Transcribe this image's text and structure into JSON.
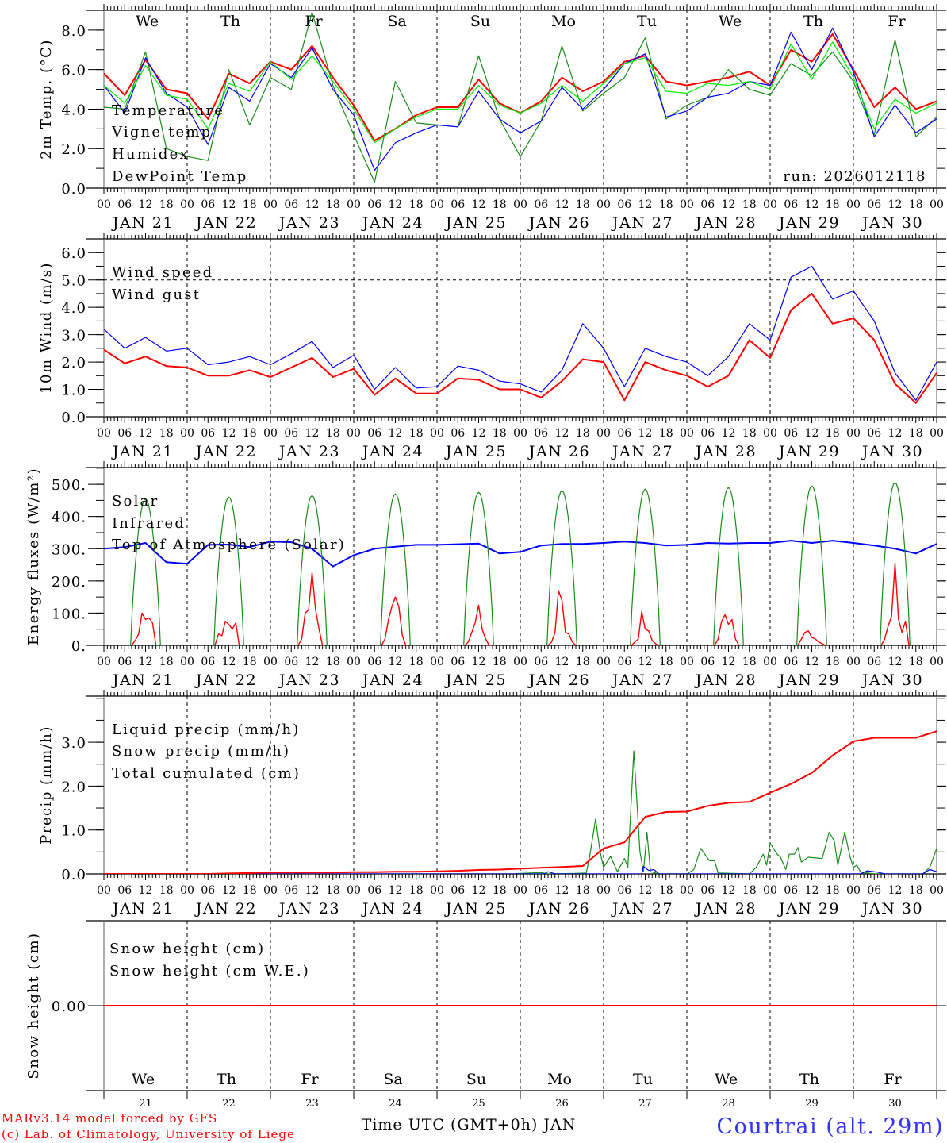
{
  "x_axis": {
    "hours_total": 240,
    "hour_labels": [
      "00",
      "06",
      "12",
      "18"
    ],
    "date_labels": [
      "JAN 21",
      "JAN 22",
      "JAN 23",
      "JAN 24",
      "JAN 25",
      "JAN 26",
      "JAN 27",
      "JAN 28",
      "JAN 29",
      "JAN 30"
    ],
    "day_names": [
      "We",
      "Th",
      "Fr",
      "Sa",
      "Su",
      "Mo",
      "Tu",
      "We",
      "Th",
      "Fr"
    ],
    "weekend_days": [
      3,
      4
    ],
    "weekend_color": "#ff0000",
    "day_numbers": [
      "21",
      "22",
      "23",
      "24",
      "25",
      "26",
      "27",
      "28",
      "29",
      "30"
    ],
    "title": "Time UTC (GMT+0h) JAN"
  },
  "footer": {
    "credit_1": "MARv3.14 model forced by GFS",
    "credit_2": "(c) Lab. of Climatology, University of Liege",
    "location": "Courtrai (alt. 29m)"
  },
  "chart_data": [
    {
      "type": "line",
      "ylabel": "2m Temp. (°C)",
      "ylim": [
        0,
        9
      ],
      "minor_step": 1,
      "yticks": [
        {
          "v": 0,
          "label": "0.0"
        },
        {
          "v": 2,
          "label": "2.0"
        },
        {
          "v": 4,
          "label": "4.0"
        },
        {
          "v": 6,
          "label": "6.0"
        },
        {
          "v": 8,
          "label": "8.0"
        }
      ],
      "run_label": "run: 2026012118",
      "step_hours": 6,
      "series": [
        {
          "name": "Temperature",
          "color": "#ff0000",
          "width": 2,
          "values": [
            5.8,
            4.7,
            6.5,
            5.0,
            4.8,
            3.5,
            5.8,
            5.3,
            6.4,
            6.0,
            7.2,
            5.6,
            4.2,
            2.4,
            3.0,
            3.7,
            4.1,
            4.1,
            5.5,
            4.3,
            3.8,
            4.4,
            5.6,
            4.9,
            5.4,
            6.4,
            6.7,
            5.4,
            5.2,
            5.4,
            5.6,
            5.9,
            5.2,
            7.0,
            6.4,
            7.8,
            6.0,
            4.1,
            5.1,
            4.0,
            4.4
          ]
        },
        {
          "name": "Vigne temp",
          "color": "#1a8c1a",
          "width": 1.2,
          "values": [
            4.1,
            4.0,
            6.9,
            2.0,
            1.6,
            1.4,
            6.0,
            3.2,
            5.6,
            5.0,
            8.9,
            5.2,
            2.7,
            0.3,
            5.4,
            3.3,
            3.2,
            3.1,
            6.7,
            3.5,
            1.6,
            3.4,
            7.2,
            3.9,
            4.8,
            5.6,
            7.6,
            3.5,
            4.2,
            4.6,
            6.0,
            5.0,
            4.7,
            6.3,
            5.7,
            6.9,
            5.4,
            2.7,
            7.5,
            2.6,
            3.6
          ]
        },
        {
          "name": "Humidex",
          "color": "#0000ff",
          "width": 1.2,
          "values": [
            5.2,
            3.8,
            6.6,
            4.8,
            4.1,
            2.2,
            5.1,
            4.4,
            6.3,
            5.6,
            7.1,
            5.0,
            3.7,
            0.9,
            2.3,
            2.8,
            3.2,
            3.1,
            4.9,
            3.5,
            2.8,
            3.4,
            5.1,
            4.0,
            5.0,
            6.3,
            6.8,
            3.6,
            3.9,
            4.6,
            4.8,
            5.4,
            5.2,
            7.9,
            6.0,
            8.1,
            5.9,
            2.6,
            4.2,
            2.8,
            3.5
          ]
        },
        {
          "name": "DewPoint Temp",
          "color": "#00ee00",
          "width": 1.2,
          "values": [
            5.2,
            4.3,
            6.2,
            4.7,
            4.5,
            3.0,
            5.3,
            4.9,
            6.4,
            5.5,
            6.7,
            5.4,
            4.0,
            2.3,
            3.0,
            3.6,
            4.0,
            4.0,
            5.2,
            4.2,
            3.8,
            4.3,
            5.2,
            4.4,
            5.3,
            6.3,
            6.6,
            4.9,
            4.8,
            5.3,
            5.2,
            5.4,
            5.0,
            7.3,
            5.5,
            7.4,
            5.6,
            3.0,
            4.5,
            3.8,
            4.3
          ]
        }
      ]
    },
    {
      "type": "line",
      "ylabel": "10m Wind (m/s)",
      "ylim": [
        0,
        6.5
      ],
      "minor_step": 0.5,
      "hline": 5.0,
      "yticks": [
        {
          "v": 0,
          "label": "0.0"
        },
        {
          "v": 1,
          "label": "1.0"
        },
        {
          "v": 2,
          "label": "2.0"
        },
        {
          "v": 3,
          "label": "3.0"
        },
        {
          "v": 4,
          "label": "4.0"
        },
        {
          "v": 5,
          "label": "5.0"
        },
        {
          "v": 6,
          "label": "6.0"
        }
      ],
      "step_hours": 6,
      "series": [
        {
          "name": "Wind speed",
          "color": "#ff0000",
          "width": 2,
          "values": [
            2.45,
            1.95,
            2.2,
            1.85,
            1.8,
            1.5,
            1.5,
            1.7,
            1.45,
            1.8,
            2.15,
            1.45,
            1.75,
            0.8,
            1.4,
            0.85,
            0.85,
            1.4,
            1.35,
            1.0,
            1.0,
            0.7,
            1.3,
            2.1,
            2.0,
            0.6,
            2.0,
            1.7,
            1.5,
            1.1,
            1.5,
            2.8,
            2.15,
            3.9,
            4.5,
            3.4,
            3.6,
            2.8,
            1.2,
            0.5,
            1.6
          ]
        },
        {
          "name": "Wind gust",
          "color": "#0000ff",
          "width": 1.2,
          "values": [
            3.2,
            2.5,
            2.9,
            2.4,
            2.5,
            1.9,
            2.0,
            2.2,
            1.9,
            2.3,
            2.75,
            1.8,
            2.25,
            1.0,
            1.8,
            1.05,
            1.1,
            1.85,
            1.7,
            1.3,
            1.2,
            0.9,
            1.7,
            3.4,
            2.5,
            1.1,
            2.5,
            2.2,
            2.0,
            1.5,
            2.2,
            3.4,
            2.8,
            5.1,
            5.5,
            4.3,
            4.6,
            3.5,
            1.6,
            0.6,
            2.0
          ]
        }
      ]
    },
    {
      "type": "line",
      "ylabel": "Energy fluxes (W/m²)",
      "ylim": [
        0,
        552
      ],
      "minor_step": 50,
      "yticks": [
        {
          "v": 0,
          "label": "0."
        },
        {
          "v": 100,
          "label": "100."
        },
        {
          "v": 200,
          "label": "200."
        },
        {
          "v": 300,
          "label": "300."
        },
        {
          "v": 400,
          "label": "400."
        },
        {
          "v": 500,
          "label": "500."
        }
      ],
      "series": [
        {
          "name": "Solar",
          "color": "#ff0000",
          "width": 1.4,
          "daily_hours": [
            7,
            8,
            9,
            10,
            11,
            12,
            13,
            14,
            15,
            16,
            17
          ],
          "daily_values": [
            [
              0,
              0,
              15,
              35,
              100,
              80,
              85,
              70,
              0,
              0,
              0
            ],
            [
              0,
              0,
              35,
              30,
              75,
              65,
              50,
              70,
              0,
              0,
              0
            ],
            [
              0,
              0,
              20,
              100,
              110,
              225,
              110,
              50,
              0,
              0,
              0
            ],
            [
              0,
              0,
              20,
              80,
              120,
              150,
              120,
              30,
              0,
              0,
              0
            ],
            [
              0,
              0,
              10,
              40,
              70,
              125,
              50,
              20,
              0,
              0,
              0
            ],
            [
              0,
              0,
              10,
              40,
              170,
              140,
              40,
              35,
              10,
              0,
              0
            ],
            [
              0,
              0,
              10,
              20,
              105,
              50,
              45,
              15,
              5,
              0,
              0
            ],
            [
              0,
              0,
              20,
              75,
              95,
              65,
              80,
              20,
              0,
              0,
              0
            ],
            [
              0,
              0,
              20,
              40,
              45,
              25,
              20,
              10,
              5,
              0,
              0
            ],
            [
              0,
              0,
              20,
              60,
              90,
              255,
              80,
              40,
              75,
              0,
              0
            ]
          ]
        },
        {
          "name": "Infrared",
          "color": "#0000ff",
          "width": 2,
          "step_hours": 6,
          "values": [
            300,
            305,
            318,
            258,
            253,
            312,
            313,
            305,
            322,
            320,
            300,
            245,
            280,
            300,
            306,
            312,
            312,
            314,
            316,
            285,
            290,
            310,
            315,
            315,
            318,
            322,
            318,
            310,
            312,
            318,
            316,
            318,
            318,
            325,
            318,
            325,
            318,
            310,
            300,
            285,
            315
          ]
        },
        {
          "name": "Top of Atmosphere (Solar)",
          "color": "#1a8c1a",
          "width": 1.2,
          "sunrise_hour": 7.7,
          "sunset_hour": 16.3,
          "daily_peaks": [
            455,
            460,
            465,
            470,
            475,
            480,
            485,
            490,
            495,
            505
          ]
        }
      ]
    },
    {
      "type": "line",
      "ylabel": "Precip (mm/h)",
      "ylim": [
        0,
        4.05
      ],
      "minor_step": 0.5,
      "yticks": [
        {
          "v": 0,
          "label": "0.0"
        },
        {
          "v": 1,
          "label": "1.0"
        },
        {
          "v": 2,
          "label": "2.0"
        },
        {
          "v": 3,
          "label": "3.0"
        }
      ],
      "series": [
        {
          "name": "Liquid precip (mm/h)",
          "color": "#1a8c1a",
          "width": 1.2,
          "points": [
            [
              0,
              0
            ],
            [
              52,
              0
            ],
            [
              54,
              0.03
            ],
            [
              58,
              0
            ],
            [
              118,
              0
            ],
            [
              120,
              0.01
            ],
            [
              126,
              0.03
            ],
            [
              128,
              0
            ],
            [
              136,
              0.01
            ],
            [
              139,
              0.02
            ],
            [
              140,
              0.4
            ],
            [
              141.7,
              1.25
            ],
            [
              143,
              0.5
            ],
            [
              144,
              0.15
            ],
            [
              146,
              0.4
            ],
            [
              148,
              0.05
            ],
            [
              150,
              0.35
            ],
            [
              151,
              0.15
            ],
            [
              152.7,
              2.8
            ],
            [
              154.5,
              0.5
            ],
            [
              155.5,
              0.05
            ],
            [
              156.5,
              0.95
            ],
            [
              157.5,
              0.05
            ],
            [
              160,
              0
            ],
            [
              168,
              0
            ],
            [
              170,
              0.1
            ],
            [
              172,
              0.58
            ],
            [
              174.5,
              0.3
            ],
            [
              176,
              0.3
            ],
            [
              177,
              0.02
            ],
            [
              186,
              0
            ],
            [
              188,
              0.15
            ],
            [
              190,
              0.45
            ],
            [
              191,
              0.2
            ],
            [
              192,
              0.7
            ],
            [
              194,
              0.45
            ],
            [
              195,
              0.38
            ],
            [
              196.5,
              0.1
            ],
            [
              197.5,
              0.45
            ],
            [
              199,
              0.45
            ],
            [
              200,
              0.6
            ],
            [
              201,
              0.27
            ],
            [
              203,
              0.38
            ],
            [
              207,
              0.35
            ],
            [
              209,
              0.95
            ],
            [
              210.5,
              0.75
            ],
            [
              211.5,
              0.2
            ],
            [
              213.5,
              0.95
            ],
            [
              215,
              0.4
            ],
            [
              216,
              0.15
            ],
            [
              217,
              0.2
            ],
            [
              218,
              0.05
            ],
            [
              220,
              0.02
            ],
            [
              222,
              0
            ],
            [
              236,
              0
            ],
            [
              238,
              0.15
            ],
            [
              240,
              0.58
            ]
          ]
        },
        {
          "name": "Snow precip (mm/h)",
          "color": "#0000ff",
          "width": 1.2,
          "points": [
            [
              0,
              0
            ],
            [
              127,
              0
            ],
            [
              128,
              0.05
            ],
            [
              130,
              0
            ],
            [
              155,
              0
            ],
            [
              155.5,
              0.17
            ],
            [
              157,
              0.08
            ],
            [
              158.5,
              0.1
            ],
            [
              160,
              0
            ],
            [
              218,
              0
            ],
            [
              220,
              0.07
            ],
            [
              223,
              0.04
            ],
            [
              225,
              0
            ],
            [
              236,
              0
            ],
            [
              238,
              0.1
            ],
            [
              240,
              0.05
            ]
          ]
        },
        {
          "name": "Total cumulated (cm)",
          "color": "#ff0000",
          "width": 2,
          "step_hours": 6,
          "values": [
            0,
            0,
            0,
            0,
            0,
            0,
            0.01,
            0.02,
            0.03,
            0.03,
            0.03,
            0.03,
            0.04,
            0.04,
            0.05,
            0.05,
            0.06,
            0.07,
            0.09,
            0.1,
            0.12,
            0.14,
            0.16,
            0.18,
            0.58,
            0.72,
            1.3,
            1.41,
            1.42,
            1.55,
            1.62,
            1.64,
            1.85,
            2.05,
            2.3,
            2.7,
            3.02,
            3.1,
            3.1,
            3.1,
            3.25
          ]
        }
      ]
    },
    {
      "type": "line",
      "ylabel": "Snow height (cm)",
      "ylim": [
        -1,
        1
      ],
      "yticks": [
        {
          "v": 0,
          "label": "0.00"
        }
      ],
      "step_hours": 240,
      "series": [
        {
          "name": "Snow height (cm)",
          "color": "#ff0000",
          "width": 2,
          "values": [
            0,
            0
          ]
        },
        {
          "name": "Snow height (cm W.E.)",
          "color": "#0000ff",
          "width": 0,
          "values": [
            0,
            0
          ]
        }
      ]
    }
  ]
}
